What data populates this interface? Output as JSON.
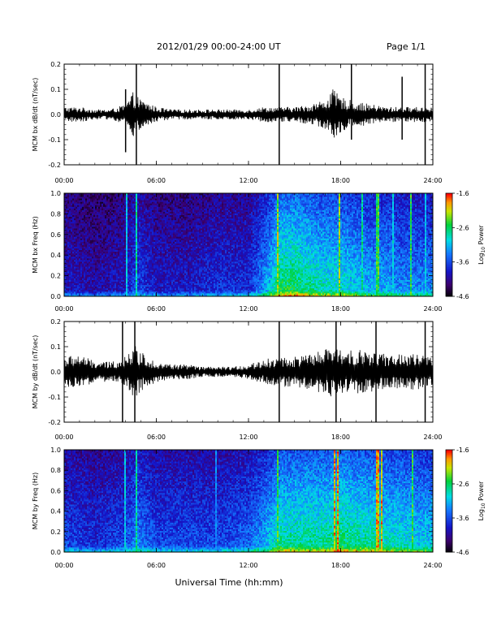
{
  "header": {
    "title": "2012/01/29  00:00-24:00 UT",
    "page": "Page 1/1"
  },
  "xlabel": "Universal Time (hh:mm)",
  "chart_data": [
    {
      "type": "line",
      "ylabel": "MCM bx dB/dt (nT/sec)",
      "xlim": [
        0,
        24
      ],
      "ylim": [
        -0.2,
        0.2
      ],
      "x_ticks": [
        "00:00",
        "06:00",
        "12:00",
        "18:00",
        "24:00"
      ],
      "y_ticks": [
        "-0.2",
        "-0.1",
        "0.0",
        "0.1",
        "0.2"
      ],
      "envelope": {
        "hours": [
          0,
          1,
          2,
          3,
          4,
          4.5,
          5,
          6,
          7,
          8,
          9,
          10,
          11,
          12,
          13,
          14,
          15,
          16,
          17,
          17.5,
          18,
          19,
          20,
          21,
          22,
          23,
          24
        ],
        "amplitude": [
          0.03,
          0.03,
          0.02,
          0.02,
          0.04,
          0.09,
          0.06,
          0.03,
          0.02,
          0.02,
          0.02,
          0.02,
          0.02,
          0.02,
          0.03,
          0.03,
          0.03,
          0.04,
          0.06,
          0.1,
          0.07,
          0.05,
          0.04,
          0.03,
          0.03,
          0.03,
          0.03
        ]
      },
      "spikes": [
        {
          "hour": 4.0,
          "max": 0.1,
          "min": -0.15
        },
        {
          "hour": 4.7,
          "max": 0.2,
          "min": -0.2
        },
        {
          "hour": 14.0,
          "max": 0.2,
          "min": -0.2
        },
        {
          "hour": 18.7,
          "max": 0.2,
          "min": -0.1
        },
        {
          "hour": 22.0,
          "max": 0.15,
          "min": -0.1
        },
        {
          "hour": 23.5,
          "max": 0.2,
          "min": -0.2
        }
      ]
    },
    {
      "type": "heatmap",
      "ylabel": "MCM bx Freq (Hz)",
      "xlim": [
        0,
        24
      ],
      "ylim": [
        0,
        1.0
      ],
      "x_ticks": [
        "00:00",
        "06:00",
        "12:00",
        "18:00",
        "24:00"
      ],
      "y_ticks": [
        "0.0",
        "0.2",
        "0.4",
        "0.6",
        "0.8",
        "1.0"
      ],
      "colorbar": {
        "label": "Log10 Power",
        "label_main": "Log",
        "label_sub": "10",
        "label_rest": " Power",
        "ticks": [
          "-1.6",
          "-2.6",
          "-3.6",
          "-4.6"
        ],
        "range": [
          -4.6,
          -1.6
        ]
      },
      "activity": {
        "hours": [
          0,
          2,
          4,
          4.7,
          6,
          8,
          10,
          12,
          13.5,
          14,
          15,
          16,
          17,
          18,
          19,
          20,
          21,
          22,
          23,
          24
        ],
        "level": [
          0.25,
          0.2,
          0.25,
          0.35,
          0.25,
          0.25,
          0.3,
          0.3,
          0.55,
          0.7,
          0.7,
          0.65,
          0.6,
          0.6,
          0.55,
          0.5,
          0.5,
          0.45,
          0.45,
          0.45
        ]
      },
      "streaks": [
        {
          "hour": 4.1,
          "strength": 0.6
        },
        {
          "hour": 4.7,
          "strength": 0.7
        },
        {
          "hour": 13.9,
          "strength": 0.9
        },
        {
          "hour": 17.95,
          "strength": 0.9
        },
        {
          "hour": 19.4,
          "strength": 0.7
        },
        {
          "hour": 20.4,
          "strength": 0.8
        },
        {
          "hour": 21.4,
          "strength": 0.6
        },
        {
          "hour": 22.6,
          "strength": 0.8
        },
        {
          "hour": 23.5,
          "strength": 0.6
        }
      ]
    },
    {
      "type": "line",
      "ylabel": "MCM by dB/dt (nT/sec)",
      "xlim": [
        0,
        24
      ],
      "ylim": [
        -0.2,
        0.2
      ],
      "x_ticks": [
        "00:00",
        "06:00",
        "12:00",
        "18:00",
        "24:00"
      ],
      "y_ticks": [
        "-0.2",
        "-0.1",
        "0.0",
        "0.1",
        "0.2"
      ],
      "envelope": {
        "hours": [
          0,
          1,
          2,
          3,
          4,
          4.5,
          5,
          6,
          7,
          8,
          9,
          10,
          11,
          12,
          13,
          14,
          15,
          16,
          17,
          17.5,
          18,
          19,
          20,
          21,
          22,
          23,
          24
        ],
        "amplitude": [
          0.06,
          0.07,
          0.04,
          0.04,
          0.06,
          0.11,
          0.08,
          0.04,
          0.03,
          0.03,
          0.02,
          0.02,
          0.02,
          0.03,
          0.05,
          0.06,
          0.06,
          0.07,
          0.09,
          0.1,
          0.09,
          0.09,
          0.08,
          0.07,
          0.07,
          0.07,
          0.06
        ]
      },
      "spikes": [
        {
          "hour": 3.8,
          "max": 0.2,
          "min": -0.2
        },
        {
          "hour": 4.6,
          "max": 0.2,
          "min": -0.2
        },
        {
          "hour": 14.0,
          "max": 0.2,
          "min": -0.2
        },
        {
          "hour": 17.7,
          "max": 0.2,
          "min": -0.2
        },
        {
          "hour": 20.3,
          "max": 0.2,
          "min": -0.2
        },
        {
          "hour": 23.5,
          "max": 0.2,
          "min": -0.2
        }
      ]
    },
    {
      "type": "heatmap",
      "ylabel": "MCM by Freq (Hz)",
      "xlim": [
        0,
        24
      ],
      "ylim": [
        0,
        1.0
      ],
      "x_ticks": [
        "00:00",
        "06:00",
        "12:00",
        "18:00",
        "24:00"
      ],
      "y_ticks": [
        "0.0",
        "0.2",
        "0.4",
        "0.6",
        "0.8",
        "1.0"
      ],
      "colorbar": {
        "label": "Log10 Power",
        "label_main": "Log",
        "label_sub": "10",
        "label_rest": " Power",
        "ticks": [
          "-1.6",
          "-2.6",
          "-3.6",
          "-4.6"
        ],
        "range": [
          -4.6,
          -1.6
        ]
      },
      "activity": {
        "hours": [
          0,
          2,
          4,
          4.7,
          6,
          8,
          10,
          12,
          13.5,
          14,
          15,
          16,
          17,
          18,
          19,
          20,
          21,
          22,
          23,
          24
        ],
        "level": [
          0.35,
          0.3,
          0.35,
          0.45,
          0.35,
          0.35,
          0.35,
          0.4,
          0.55,
          0.65,
          0.65,
          0.65,
          0.65,
          0.7,
          0.65,
          0.65,
          0.6,
          0.6,
          0.55,
          0.55
        ]
      },
      "streaks": [
        {
          "hour": 4.0,
          "strength": 0.6
        },
        {
          "hour": 4.7,
          "strength": 0.7
        },
        {
          "hour": 9.9,
          "strength": 0.5
        },
        {
          "hour": 13.9,
          "strength": 0.8
        },
        {
          "hour": 17.6,
          "strength": 1.0
        },
        {
          "hour": 17.85,
          "strength": 1.0
        },
        {
          "hour": 20.4,
          "strength": 1.0
        },
        {
          "hour": 20.7,
          "strength": 1.0
        },
        {
          "hour": 22.7,
          "strength": 0.8
        }
      ]
    }
  ]
}
